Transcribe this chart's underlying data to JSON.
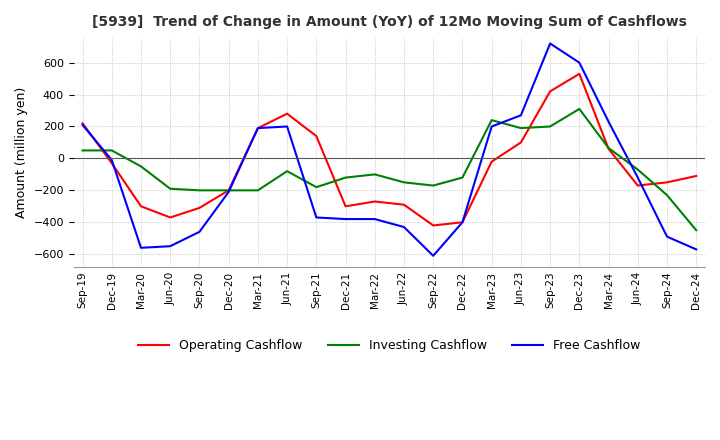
{
  "title": "[5939]  Trend of Change in Amount (YoY) of 12Mo Moving Sum of Cashflows",
  "ylabel": "Amount (million yen)",
  "ylim": [
    -680,
    760
  ],
  "yticks": [
    -600,
    -400,
    -200,
    0,
    200,
    400,
    600
  ],
  "x_labels": [
    "Sep-19",
    "Dec-19",
    "Mar-20",
    "Jun-20",
    "Sep-20",
    "Dec-20",
    "Mar-21",
    "Jun-21",
    "Sep-21",
    "Dec-21",
    "Mar-22",
    "Jun-22",
    "Sep-22",
    "Dec-22",
    "Mar-23",
    "Jun-23",
    "Sep-23",
    "Dec-23",
    "Mar-24",
    "Jun-24",
    "Sep-24",
    "Dec-24"
  ],
  "operating": [
    220,
    -30,
    -300,
    -370,
    -310,
    -200,
    190,
    280,
    140,
    -300,
    -270,
    -290,
    -420,
    -400,
    -20,
    100,
    420,
    530,
    60,
    -170,
    -150,
    -110
  ],
  "investing": [
    50,
    50,
    -50,
    -190,
    -200,
    -200,
    -200,
    -80,
    -180,
    -120,
    -100,
    -150,
    -170,
    -120,
    240,
    190,
    200,
    310,
    65,
    -70,
    -230,
    -450
  ],
  "free": [
    210,
    -10,
    -560,
    -550,
    -460,
    -210,
    190,
    200,
    -370,
    -380,
    -380,
    -430,
    -610,
    -400,
    200,
    270,
    720,
    600,
    230,
    -120,
    -490,
    -570
  ],
  "operating_color": "#ff0000",
  "investing_color": "#008000",
  "free_color": "#0000ff",
  "legend_labels": [
    "Operating Cashflow",
    "Investing Cashflow",
    "Free Cashflow"
  ],
  "background_color": "#ffffff",
  "grid_color": "#aaaaaa",
  "title_color": "#333333"
}
